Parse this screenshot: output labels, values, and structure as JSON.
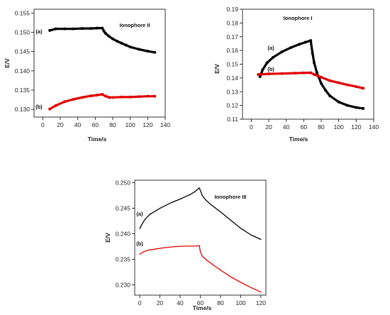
{
  "chart_data": [
    {
      "type": "line",
      "title": "Ionophore II",
      "xlabel": "Time/s",
      "ylabel": "E/V",
      "xlim": [
        -10,
        140
      ],
      "ylim": [
        0.128,
        0.156
      ],
      "xticks": [
        "0",
        "20",
        "40",
        "60",
        "80",
        "100",
        "120",
        "140"
      ],
      "yticks": [
        "0.130",
        "0.135",
        "0.140",
        "0.145",
        "0.150",
        "0.155"
      ],
      "grid": false,
      "series": [
        {
          "name": "(a)",
          "color": "#000000",
          "marker": "dot",
          "x": [
            8,
            15,
            25,
            35,
            45,
            55,
            62,
            68,
            70,
            72,
            75,
            80,
            85,
            90,
            95,
            100,
            110,
            120,
            128
          ],
          "y": [
            0.1505,
            0.1509,
            0.1509,
            0.1509,
            0.151,
            0.151,
            0.1511,
            0.1511,
            0.1503,
            0.1497,
            0.1491,
            0.1483,
            0.1477,
            0.1472,
            0.1467,
            0.1462,
            0.1456,
            0.1451,
            0.1448
          ]
        },
        {
          "name": "(b)",
          "color": "#e00000",
          "marker": "dot",
          "x": [
            8,
            15,
            25,
            35,
            45,
            55,
            62,
            68,
            72,
            76,
            80,
            90,
            100,
            110,
            120,
            128
          ],
          "y": [
            0.1301,
            0.131,
            0.132,
            0.1326,
            0.1331,
            0.1335,
            0.1337,
            0.1339,
            0.1334,
            0.1331,
            0.1331,
            0.1332,
            0.1332,
            0.1333,
            0.1334,
            0.1334
          ]
        }
      ]
    },
    {
      "type": "line",
      "title": "Ionophore I",
      "xlabel": "Time/s",
      "ylabel": "E/V",
      "xlim": [
        -10,
        140
      ],
      "ylim": [
        0.11,
        0.19
      ],
      "xticks": [
        "0",
        "20",
        "40",
        "60",
        "80",
        "100",
        "120",
        "140"
      ],
      "yticks": [
        "0.11",
        "0.12",
        "0.13",
        "0.14",
        "0.15",
        "0.16",
        "0.17",
        "0.18",
        "0.19"
      ],
      "grid": false,
      "series": [
        {
          "name": "(a)",
          "color": "#000000",
          "marker": "dot",
          "x": [
            10,
            13,
            18,
            25,
            35,
            45,
            55,
            62,
            68,
            70,
            72,
            75,
            80,
            85,
            90,
            100,
            110,
            120,
            128
          ],
          "y": [
            0.141,
            0.146,
            0.151,
            0.155,
            0.159,
            0.162,
            0.1645,
            0.166,
            0.1672,
            0.158,
            0.151,
            0.144,
            0.136,
            0.131,
            0.127,
            0.1225,
            0.12,
            0.1185,
            0.1178
          ]
        },
        {
          "name": "(b)",
          "color": "#e00000",
          "marker": "dot",
          "x": [
            8,
            20,
            35,
            50,
            60,
            68,
            72,
            80,
            90,
            100,
            110,
            120,
            128
          ],
          "y": [
            0.1425,
            0.143,
            0.1432,
            0.1435,
            0.1437,
            0.1438,
            0.1425,
            0.1405,
            0.138,
            0.1365,
            0.135,
            0.1337,
            0.1325
          ]
        }
      ]
    },
    {
      "type": "line",
      "title": "Ionophore III",
      "xlabel": "Time/s",
      "ylabel": "E/V",
      "xlim": [
        -5,
        125
      ],
      "ylim": [
        0.228,
        0.2505
      ],
      "xticks": [
        "0",
        "20",
        "40",
        "60",
        "80",
        "100",
        "120"
      ],
      "yticks": [
        "0.230",
        "0.235",
        "0.240",
        "0.245",
        "0.250"
      ],
      "grid": false,
      "series": [
        {
          "name": "(a)",
          "color": "#000000",
          "marker": "none",
          "x": [
            0,
            2,
            5,
            10,
            15,
            20,
            30,
            40,
            50,
            55,
            59,
            60,
            62,
            65,
            70,
            80,
            90,
            100,
            110,
            120
          ],
          "y": [
            0.241,
            0.2418,
            0.2428,
            0.2438,
            0.2444,
            0.245,
            0.246,
            0.2468,
            0.2477,
            0.2483,
            0.249,
            0.2485,
            0.2475,
            0.2467,
            0.2458,
            0.2443,
            0.2427,
            0.2411,
            0.2398,
            0.2389
          ]
        },
        {
          "name": "(b)",
          "color": "#e00000",
          "marker": "none",
          "x": [
            0,
            3,
            8,
            15,
            25,
            35,
            45,
            55,
            59,
            60,
            62,
            66,
            70,
            80,
            90,
            100,
            110,
            120
          ],
          "y": [
            0.236,
            0.2364,
            0.2368,
            0.237,
            0.2373,
            0.2375,
            0.2376,
            0.2376,
            0.2377,
            0.2365,
            0.2356,
            0.2349,
            0.2343,
            0.2329,
            0.2316,
            0.2305,
            0.2295,
            0.2286
          ]
        }
      ]
    }
  ]
}
